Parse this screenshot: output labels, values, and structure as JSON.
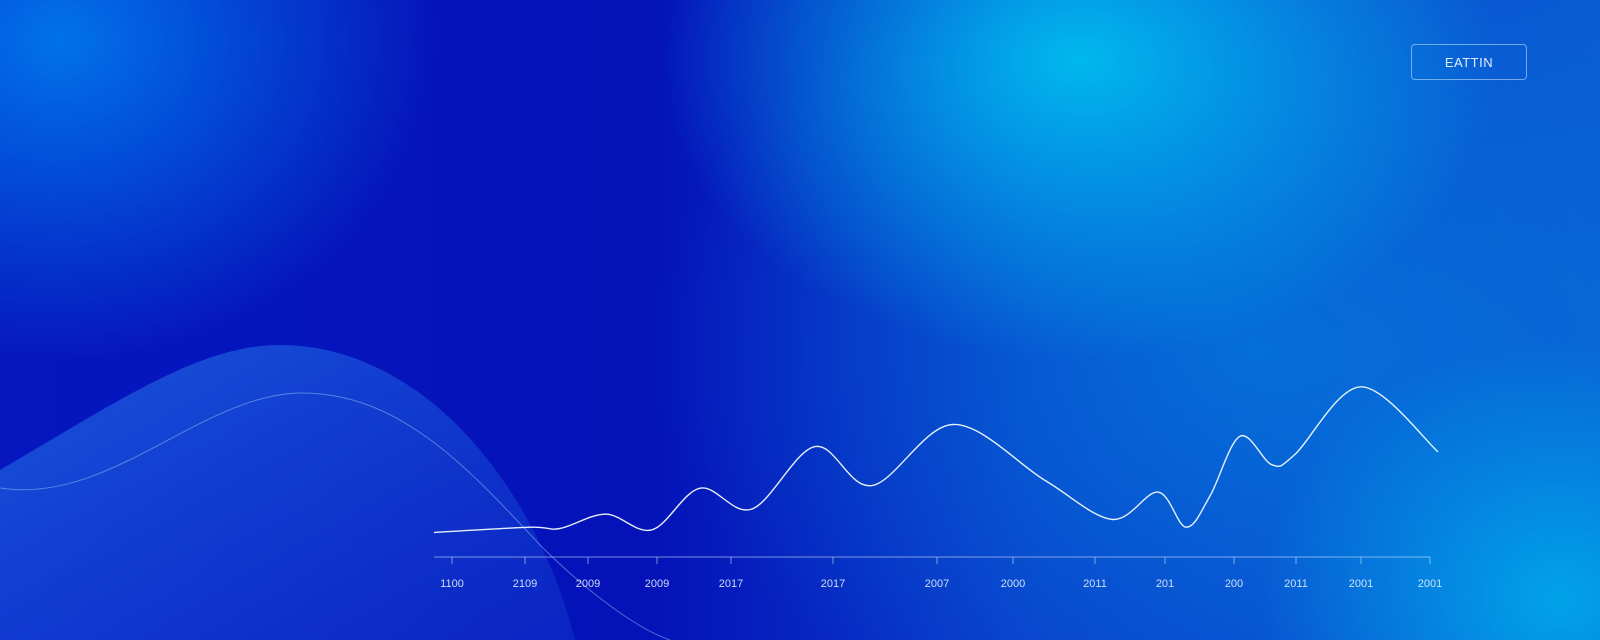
{
  "legend_label": "EATTIN",
  "chart_data": {
    "type": "line",
    "title": "",
    "xlabel": "",
    "ylabel": "",
    "grid": false,
    "legend": "top-right",
    "tick_labels": [
      "1100",
      "2109",
      "2009",
      "2009",
      "2017",
      "2017",
      "2007",
      "2000",
      "2011",
      "201",
      "200",
      "2011",
      "2001",
      "2001"
    ],
    "series": [
      {
        "name": "EATTIN",
        "values": [
          0.12,
          0.16,
          0.15,
          0.26,
          0.14,
          0.46,
          0.3,
          0.78,
          0.48,
          0.95,
          0.52,
          0.22,
          0.43,
          0.16,
          0.4,
          0.86,
          0.64,
          0.72,
          1.24,
          0.74
        ]
      }
    ]
  }
}
